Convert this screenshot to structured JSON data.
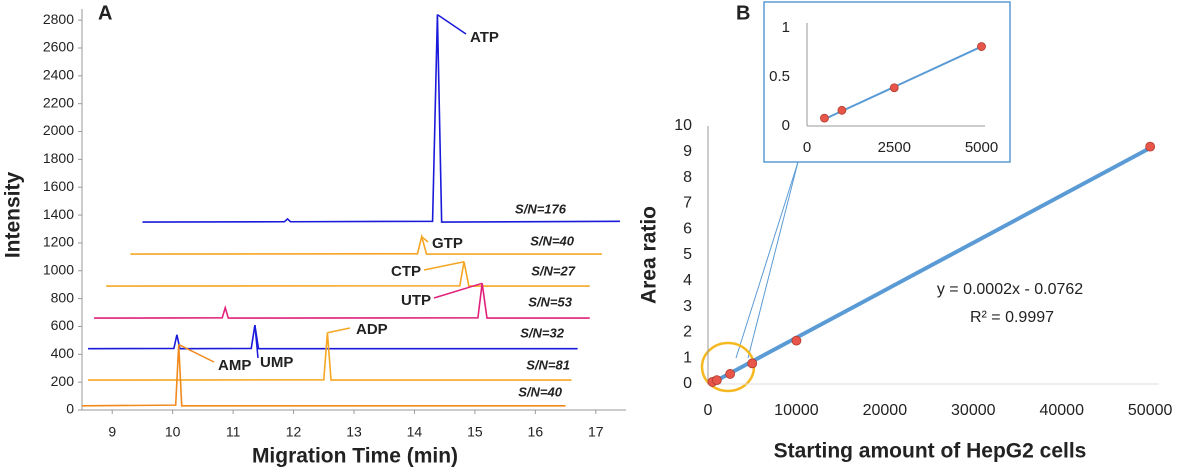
{
  "chart_data": [
    {
      "type": "line",
      "panel": "A",
      "xlabel": "Migration Time (min)",
      "ylabel": "Intensity",
      "xlim": [
        8.5,
        17.5
      ],
      "xticks": [
        9,
        10,
        11,
        12,
        13,
        14,
        15,
        16,
        17
      ],
      "ylim": [
        0,
        2880
      ],
      "yticks": [
        0,
        200,
        400,
        600,
        800,
        1000,
        1200,
        1400,
        1600,
        1800,
        2000,
        2200,
        2400,
        2600,
        2800
      ],
      "series": [
        {
          "name": "ATP",
          "sn": "S/N=176",
          "color": "#1a1adb",
          "x": [
            9.5,
            11.85,
            11.9,
            11.95,
            14.3,
            14.38,
            14.45,
            17.4
          ],
          "values": [
            1350,
            1352,
            1372,
            1352,
            1355,
            2840,
            1350,
            1355
          ]
        },
        {
          "name": "GTP",
          "sn": "S/N=40",
          "color": "#f5a623",
          "x": [
            9.3,
            14.05,
            14.12,
            14.2,
            17.1
          ],
          "values": [
            1120,
            1122,
            1245,
            1120,
            1120
          ]
        },
        {
          "name": "CTP",
          "sn": "S/N=27",
          "color": "#f5a623",
          "x": [
            8.9,
            14.75,
            14.82,
            14.9,
            16.9
          ],
          "values": [
            890,
            892,
            1065,
            890,
            890
          ]
        },
        {
          "name": "UTP",
          "sn": "S/N=53",
          "color": "#e0207a",
          "x": [
            8.7,
            10.82,
            10.87,
            10.92,
            15.05,
            15.12,
            15.2,
            16.9
          ],
          "values": [
            660,
            662,
            735,
            660,
            662,
            910,
            660,
            660
          ]
        },
        {
          "name": "UMP",
          "sn": "S/N=32",
          "color": "#1a1adb",
          "x": [
            8.6,
            10.02,
            10.07,
            10.12,
            11.3,
            11.36,
            11.42,
            16.7
          ],
          "values": [
            440,
            442,
            540,
            440,
            442,
            610,
            440,
            440
          ]
        },
        {
          "name": "ADP",
          "sn": "S/N=81",
          "color": "#f5a623",
          "x": [
            8.6,
            12.5,
            12.56,
            12.62,
            16.6
          ],
          "values": [
            215,
            217,
            555,
            215,
            215
          ]
        },
        {
          "name": "AMP",
          "sn": "S/N=40",
          "color": "#f08a1c",
          "x": [
            8.5,
            10.05,
            10.1,
            10.15,
            16.5
          ],
          "values": [
            30,
            35,
            470,
            30,
            30
          ]
        }
      ]
    },
    {
      "type": "scatter",
      "panel": "B",
      "xlabel": "Starting amount of HepG2 cells",
      "ylabel": "Area ratio",
      "xlim": [
        0,
        51000
      ],
      "xticks": [
        0,
        10000,
        20000,
        30000,
        40000,
        50000
      ],
      "ylim": [
        0,
        10
      ],
      "yticks": [
        0,
        1,
        2,
        3,
        4,
        5,
        6,
        7,
        8,
        9,
        10
      ],
      "color": "#e8564a",
      "line_color": "#5b9bd5",
      "x": [
        500,
        1000,
        2500,
        5000,
        10000,
        50000
      ],
      "values": [
        0.08,
        0.15,
        0.39,
        0.8,
        1.68,
        9.2
      ],
      "trendline": {
        "x": [
          500,
          50000
        ],
        "values": [
          0.05,
          9.15
        ]
      },
      "annotations": [
        "y = 0.0002x - 0.0762",
        "R² = 0.9997"
      ]
    },
    {
      "type": "scatter",
      "xlim": [
        0,
        5100
      ],
      "xticks": [
        0,
        2500,
        5000
      ],
      "ylim": [
        0,
        1.05
      ],
      "yticks": [
        0,
        0.5,
        1
      ],
      "color": "#e8564a",
      "line_color": "#5b9bd5",
      "x": [
        500,
        1000,
        2500,
        5000
      ],
      "values": [
        0.08,
        0.16,
        0.39,
        0.81
      ],
      "trendline": {
        "x": [
          500,
          5000
        ],
        "values": [
          0.07,
          0.81
        ]
      }
    }
  ]
}
